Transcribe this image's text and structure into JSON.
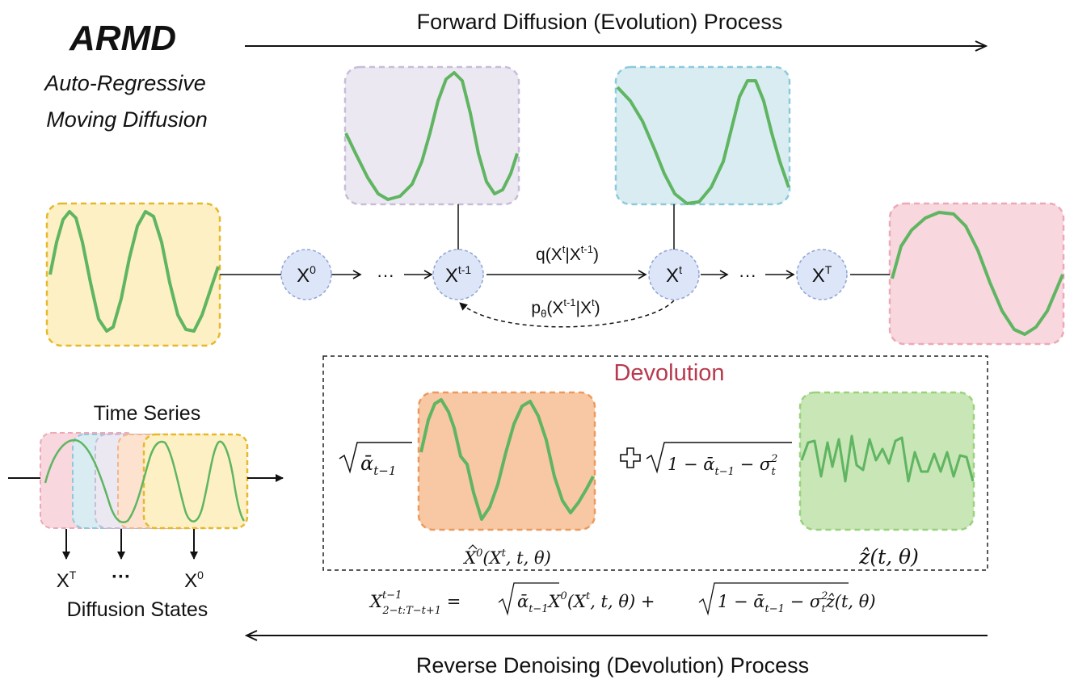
{
  "title": "ARMD",
  "subtitle_line1": "Auto-Regressive",
  "subtitle_line2": "Moving Diffusion",
  "forward_label": "Forward Diffusion (Evolution) Process",
  "reverse_label": "Reverse Denoising (Devolution) Process",
  "nodes": {
    "x0": {
      "base": "X",
      "sup": "0"
    },
    "xtm1": {
      "base": "X",
      "sup": "t-1"
    },
    "xt": {
      "base": "X",
      "sup": "t"
    },
    "xT": {
      "base": "X",
      "sup": "T"
    }
  },
  "ellipsis": "···",
  "q_label": {
    "p1": "q(X",
    "s1": "t",
    "p2": "|X",
    "s2": "t-1",
    "p3": ")"
  },
  "p_label": {
    "p1": "p",
    "sub": "θ",
    "p2": "(X",
    "s1": "t-1",
    "p3": "|X",
    "s2": "t",
    "p4": ")"
  },
  "time_series_label": "Time Series",
  "diffusion_states_label": "Diffusion States",
  "state_labels": {
    "xT": {
      "base": "X",
      "sup": "T"
    },
    "dots": "···",
    "x0": {
      "base": "X",
      "sup": "0"
    }
  },
  "devolution": {
    "title": "Devolution",
    "sqrt_alpha": "ᾱ",
    "sqrt_alpha_sub": "t−1",
    "plus": "+",
    "noise_coef": {
      "p1": "1 − ᾱ",
      "s1": "t−1",
      "p2": " − σ",
      "sup": "2",
      "sub": "t"
    },
    "x0_hat_label": {
      "p1": "X",
      "sup": "0",
      "p2": "(X",
      "sup2": "t",
      "p3": ", t, θ)"
    },
    "z_hat_label": "ẑ(t, θ)"
  },
  "equation": {
    "lhs": "X",
    "lhs_sup": "t−1",
    "lhs_sub": "2−t:T−t+1",
    "rhs1": " = ",
    "rhs_alpha": "ᾱ",
    "rhs_alpha_sub": "t−1",
    "rhs_x0": "X",
    "rhs_x0_sup": "0",
    "rhs_x0_args": "(X",
    "rhs_x0_args_sup": "t",
    "rhs_x0_args_end": ", t, θ) + ",
    "rhs_noise": "1 − ᾱ",
    "rhs_noise_sub": "t−1",
    "rhs_noise_sigma": " − σ",
    "rhs_noise_sigma_sup": "2",
    "rhs_noise_sigma_sub": "t",
    "rhs_z": "ẑ(t, θ)"
  },
  "colors": {
    "yellow_fill": "#fdf0c4",
    "yellow_stroke": "#e6b82a",
    "purple_fill": "#ece8f2",
    "purple_stroke": "#c7bdd8",
    "cyan_fill": "#d9ecf2",
    "cyan_stroke": "#8ccadb",
    "pink_fill": "#f8d7de",
    "pink_stroke": "#eca9b7",
    "orange_fill": "#f8c8a4",
    "orange_stroke": "#ec9a5c",
    "green_fill": "#c8e6b6",
    "green_stroke": "#99d27c",
    "wave": "#5fb561",
    "node_fill": "#dce6f8",
    "node_stroke": "#90a4d4",
    "devolution_title": "#b73a4e"
  }
}
